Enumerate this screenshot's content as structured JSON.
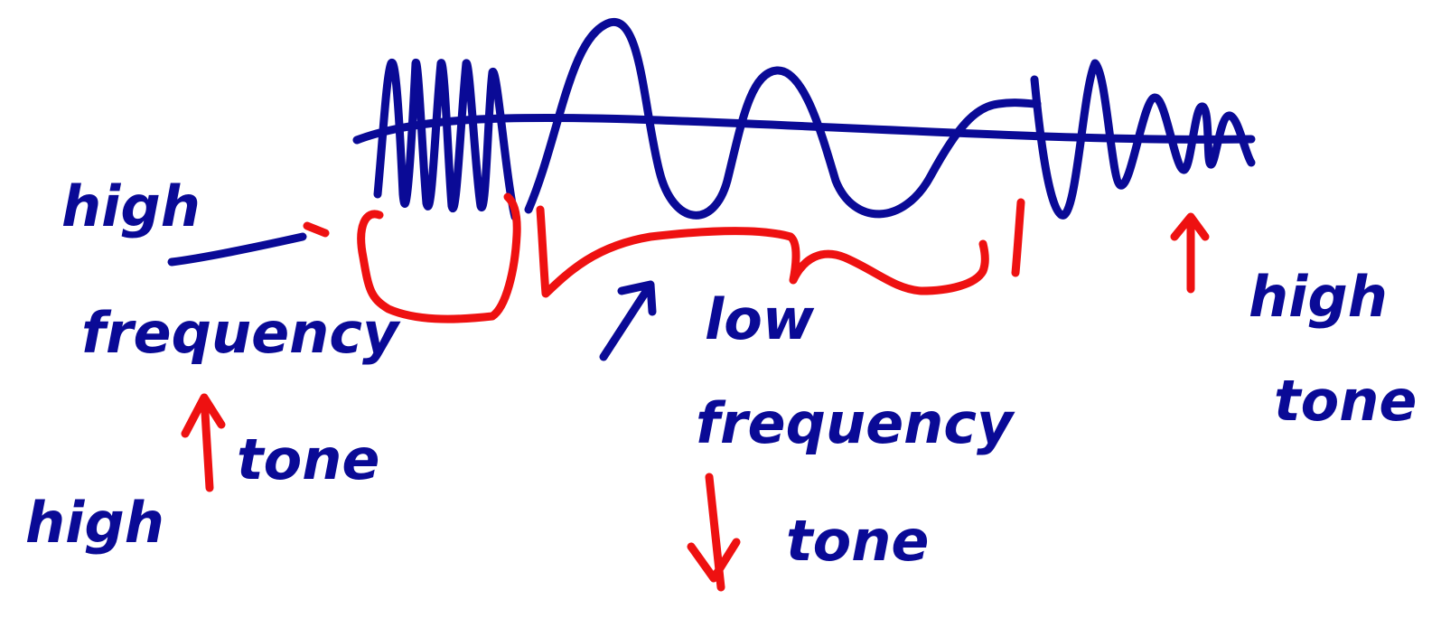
{
  "colors": {
    "ink_blue": "#0a0a96",
    "ink_red": "#ee1111",
    "background": "#ffffff"
  },
  "labels": {
    "left_top": "high",
    "left_mid": "frequency",
    "left_bottom_high": "high",
    "left_bottom_tone": "tone",
    "center_low": "low",
    "center_frequency": "frequency",
    "center_tone": "tone",
    "right_high": "high",
    "right_tone": "tone"
  },
  "annotations": {
    "left_arrow": "up",
    "center_arrow": "down",
    "right_arrow": "up"
  }
}
